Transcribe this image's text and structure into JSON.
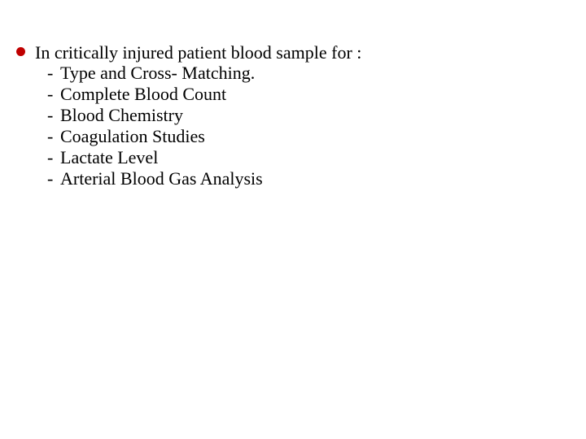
{
  "colors": {
    "bullet_disc": "#c00000",
    "text": "#000000",
    "background": "#ffffff"
  },
  "typography": {
    "font_family": "Times New Roman",
    "font_size_pt": 16,
    "line_height": 1.15
  },
  "slide": {
    "main_bullet": "In critically injured patient blood sample for    :",
    "sub_items": [
      "Type and Cross- Matching.",
      "Complete Blood Count",
      "Blood Chemistry",
      "Coagulation Studies",
      " Lactate Level",
      " Arterial Blood Gas Analysis"
    ],
    "dash": "-"
  }
}
